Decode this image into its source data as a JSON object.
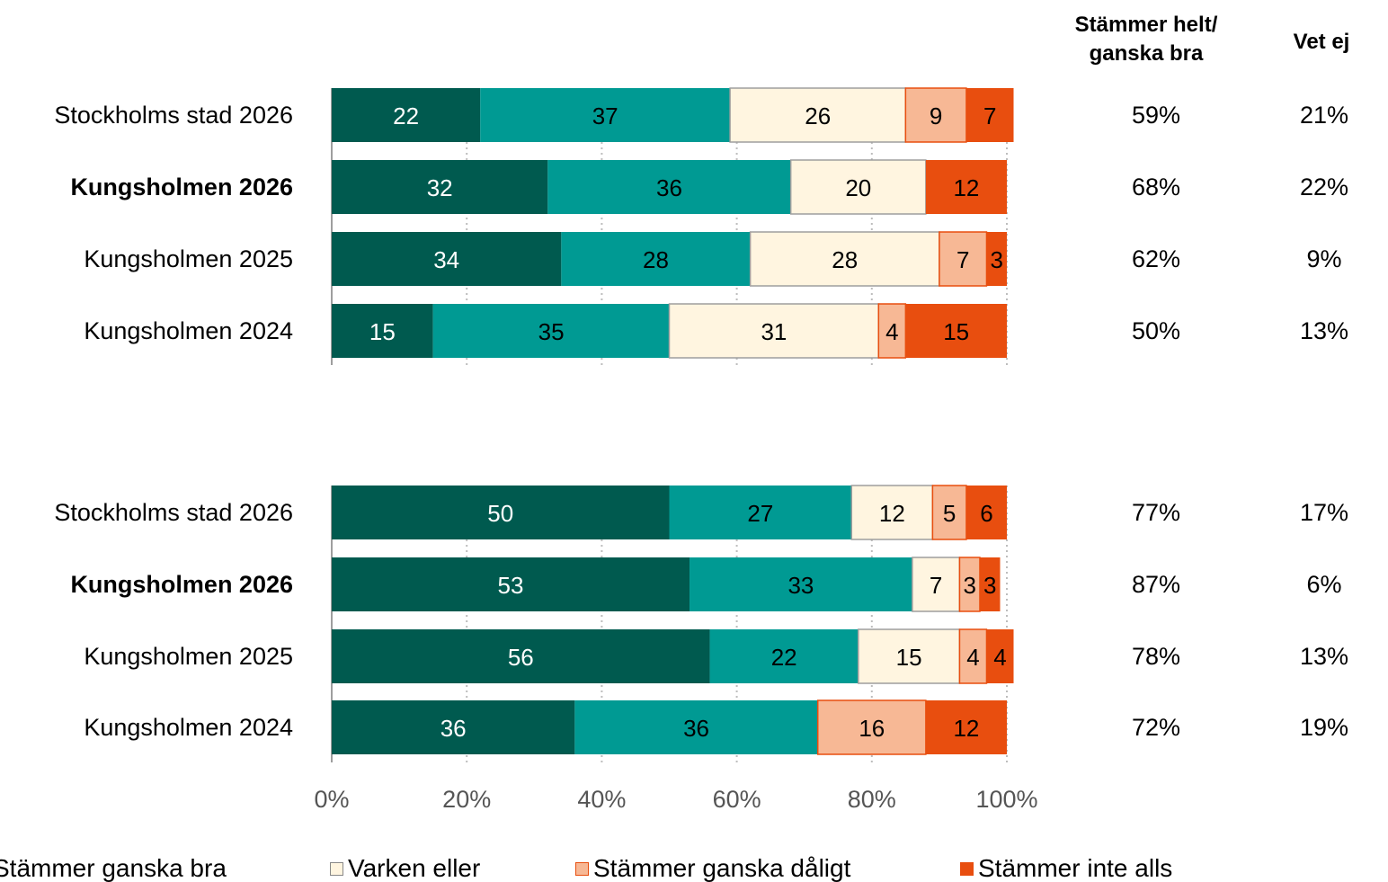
{
  "headers": {
    "share_good_line1": "Stämmer helt/",
    "share_good_line2": "ganska bra",
    "dont_know": "Vet ej"
  },
  "legend": [
    {
      "label": "Stämmer ganska bra",
      "color": "#009a93"
    },
    {
      "label": "Varken eller",
      "color": "#fff5e0"
    },
    {
      "label": "Stämmer ganska dåligt",
      "color": "#f7b895"
    },
    {
      "label": "Stämmer inte alls",
      "color": "#e84e0f"
    }
  ],
  "chart_data": [
    {
      "type": "bar",
      "orientation": "horizontal",
      "stacked": true,
      "xlim": [
        0,
        100
      ],
      "categories": [
        "Stockholms stad 2026",
        "Kungsholmen 2026",
        "Kungsholmen 2025",
        "Kungsholmen 2024"
      ],
      "bold_categories": [
        "Kungsholmen 2026"
      ],
      "series": [
        {
          "values": [
            22,
            32,
            34,
            15
          ],
          "color": "#005a4f"
        },
        {
          "name": "Stämmer ganska bra",
          "values": [
            37,
            36,
            28,
            35
          ],
          "color": "#009a93"
        },
        {
          "name": "Varken eller",
          "values": [
            26,
            20,
            28,
            31
          ],
          "color": "#fff5e0"
        },
        {
          "name": "Stämmer ganska dåligt",
          "values": [
            9,
            0,
            7,
            4
          ],
          "color": "#f7b895"
        },
        {
          "name": "Stämmer inte alls",
          "values": [
            7,
            12,
            3,
            15
          ],
          "color": "#e84e0f"
        }
      ],
      "share_good": [
        "59%",
        "68%",
        "62%",
        "50%"
      ],
      "dont_know": [
        "21%",
        "22%",
        "9%",
        "13%"
      ]
    },
    {
      "type": "bar",
      "orientation": "horizontal",
      "stacked": true,
      "xlim": [
        0,
        100
      ],
      "x_tick_labels": [
        "0%",
        "20%",
        "40%",
        "60%",
        "80%",
        "100%"
      ],
      "categories": [
        "Stockholms stad 2026",
        "Kungsholmen 2026",
        "Kungsholmen 2025",
        "Kungsholmen 2024"
      ],
      "bold_categories": [
        "Kungsholmen 2026"
      ],
      "series": [
        {
          "values": [
            50,
            53,
            56,
            36
          ],
          "color": "#005a4f"
        },
        {
          "name": "Stämmer ganska bra",
          "values": [
            27,
            33,
            22,
            36
          ],
          "color": "#009a93"
        },
        {
          "name": "Varken eller",
          "values": [
            12,
            7,
            15,
            0
          ],
          "color": "#fff5e0"
        },
        {
          "name": "Stämmer ganska dåligt",
          "values": [
            5,
            3,
            4,
            16
          ],
          "color": "#f7b895"
        },
        {
          "name": "Stämmer inte alls",
          "values": [
            6,
            3,
            4,
            12
          ],
          "color": "#e84e0f"
        }
      ],
      "share_good": [
        "77%",
        "87%",
        "78%",
        "72%"
      ],
      "dont_know": [
        "17%",
        "6%",
        "13%",
        "19%"
      ]
    }
  ]
}
